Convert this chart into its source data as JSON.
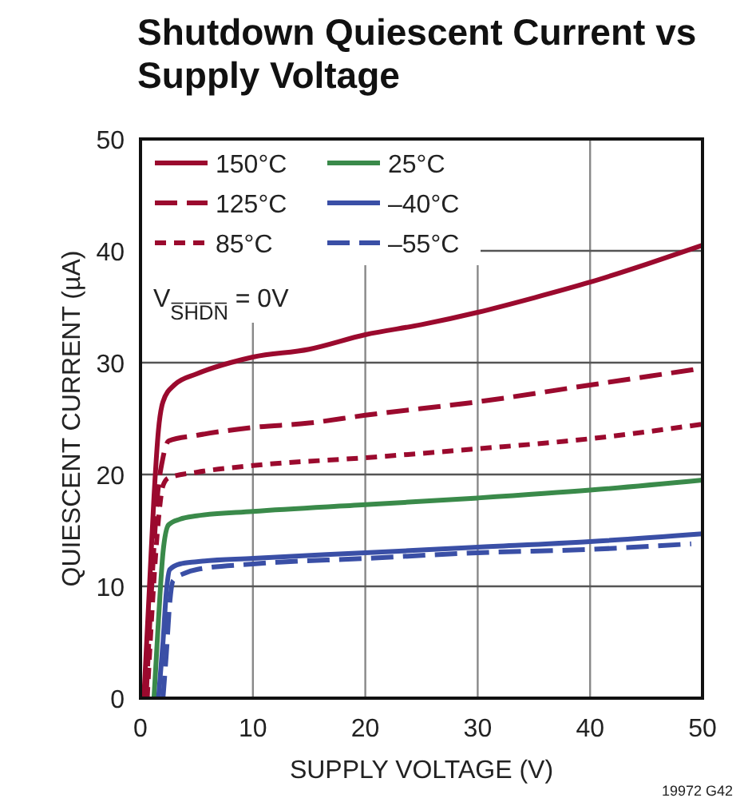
{
  "chart_data": {
    "type": "line",
    "title": "Shutdown Quiescent Current vs Supply Voltage",
    "xlabel": "SUPPLY VOLTAGE (V)",
    "ylabel": "QUIESCENT CURRENT (µA)",
    "xlim": [
      0,
      50
    ],
    "xticks": [
      0,
      10,
      20,
      30,
      40,
      50
    ],
    "ylim": [
      0,
      50
    ],
    "yticks": [
      0,
      10,
      20,
      30,
      40,
      50
    ],
    "grid": true,
    "legend": "top left",
    "marker": "none",
    "annotations": [
      "V$_{S̅H̅D̅N̅}$ = 0V",
      "19972 G42"
    ],
    "series": [
      {
        "name": "150°C",
        "color": "#9b0a2e",
        "line_style": "solid",
        "x": [
          0.3,
          0.8,
          1.2,
          1.6,
          2,
          3,
          5,
          8,
          10,
          15,
          20,
          25,
          30,
          35,
          40,
          45,
          50
        ],
        "values": [
          0,
          10,
          18,
          24,
          26.5,
          28,
          29,
          30,
          30.5,
          31.2,
          32.5,
          33.4,
          34.5,
          35.8,
          37.2,
          38.8,
          40.5
        ]
      },
      {
        "name": "125°C",
        "color": "#9b0a2e",
        "line_style": "dashed",
        "x": [
          0.5,
          1,
          1.5,
          2,
          2.5,
          5,
          10,
          15,
          20,
          30,
          40,
          50
        ],
        "values": [
          0,
          10,
          18,
          21.5,
          23,
          23.5,
          24.2,
          24.6,
          25.3,
          26.5,
          28,
          29.5
        ]
      },
      {
        "name": "85°C",
        "color": "#9b0a2e",
        "line_style": "dotted",
        "x": [
          0.6,
          1.1,
          1.6,
          2,
          2.5,
          5,
          10,
          20,
          30,
          40,
          50
        ],
        "values": [
          0,
          9,
          16,
          19,
          19.7,
          20.2,
          20.8,
          21.5,
          22.3,
          23.2,
          24.5
        ]
      },
      {
        "name": "25°C",
        "color": "#3a8a4a",
        "line_style": "solid",
        "x": [
          1.2,
          1.6,
          2,
          2.5,
          3.5,
          5,
          10,
          20,
          30,
          40,
          50
        ],
        "values": [
          0,
          7,
          13,
          15.5,
          16,
          16.3,
          16.7,
          17.3,
          17.9,
          18.6,
          19.5
        ]
      },
      {
        "name": "–40°C",
        "color": "#3a4fa6",
        "line_style": "solid",
        "x": [
          1.6,
          2,
          2.3,
          2.6,
          3.5,
          5,
          10,
          20,
          30,
          40,
          50
        ],
        "values": [
          0,
          5,
          9.5,
          11.5,
          12,
          12.2,
          12.5,
          13,
          13.5,
          14,
          14.7
        ]
      },
      {
        "name": "–55°C",
        "color": "#3a4fa6",
        "line_style": "dashed",
        "x": [
          2,
          2.3,
          2.6,
          2.9,
          4,
          5,
          10,
          20,
          30,
          40,
          49
        ],
        "values": [
          0,
          4,
          8.5,
          10.5,
          11.2,
          11.5,
          12,
          12.5,
          13,
          13.3,
          13.8
        ]
      }
    ]
  }
}
